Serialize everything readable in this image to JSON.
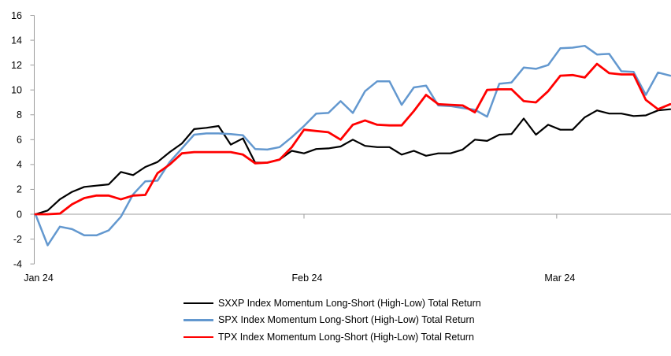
{
  "chart_data": {
    "type": "line",
    "title": "",
    "x_axis": {
      "tick_labels": [
        "Jan 24",
        "Feb 24",
        "Mar 24"
      ],
      "tick_positions_days": [
        0,
        22,
        42.7
      ],
      "domain_days": [
        0,
        52
      ]
    },
    "y_axis": {
      "tick_values": [
        16,
        14,
        12,
        10,
        8,
        6,
        4,
        2,
        0,
        -2,
        -4
      ],
      "min": -4,
      "max": 16
    },
    "grid": "zero-baseline-only",
    "legend_position": "bottom-center",
    "axis_color": "#9C9C9C",
    "text_color": "#000000",
    "series": [
      {
        "name": "SXXP Index Momentum Long-Short (High-Low) Total Return",
        "short": "sxxp",
        "color": "#000000",
        "stroke_width": 2.2,
        "values": [
          0,
          0.3,
          1.2,
          1.8,
          2.2,
          2.3,
          2.4,
          3.4,
          3.15,
          3.8,
          4.2,
          5.0,
          5.7,
          6.85,
          6.95,
          7.1,
          5.6,
          6.1,
          4.15,
          4.15,
          4.4,
          5.1,
          4.9,
          5.25,
          5.3,
          5.45,
          6.0,
          5.5,
          5.4,
          5.4,
          4.8,
          5.1,
          4.7,
          4.9,
          4.9,
          5.2,
          6.0,
          5.9,
          6.4,
          6.45,
          7.7,
          6.4,
          7.2,
          6.8,
          6.8,
          7.8,
          8.35,
          8.1,
          8.1,
          7.9,
          7.95,
          8.35,
          8.45
        ]
      },
      {
        "name": "SPX Index Momentum Long-Short (High-Low) Total Return",
        "short": "spx",
        "color": "#6398CF",
        "stroke_width": 2.5,
        "values": [
          0,
          -2.5,
          -1.0,
          -1.2,
          -1.7,
          -1.7,
          -1.3,
          -0.2,
          1.6,
          2.65,
          2.7,
          4.2,
          5.3,
          6.4,
          6.5,
          6.5,
          6.45,
          6.35,
          5.25,
          5.2,
          5.4,
          6.2,
          7.1,
          8.1,
          8.15,
          9.1,
          8.15,
          9.9,
          10.7,
          10.7,
          8.8,
          10.2,
          10.35,
          8.75,
          8.7,
          8.55,
          8.4,
          7.85,
          10.5,
          10.6,
          11.8,
          11.7,
          12.0,
          13.35,
          13.4,
          13.55,
          12.85,
          12.9,
          11.5,
          11.45,
          9.6,
          11.4,
          11.15
        ]
      },
      {
        "name": "TPX Index Momentum Long-Short (High-Low) Total Return",
        "short": "tpx",
        "color": "#FF0000",
        "stroke_width": 2.8,
        "values": [
          0,
          0,
          0.05,
          0.8,
          1.3,
          1.5,
          1.5,
          1.2,
          1.5,
          1.55,
          3.3,
          4.0,
          4.9,
          5.0,
          5.0,
          5.0,
          5.0,
          4.8,
          4.1,
          4.15,
          4.4,
          5.4,
          6.8,
          6.7,
          6.6,
          6.0,
          7.2,
          7.55,
          7.2,
          7.15,
          7.15,
          8.3,
          9.6,
          8.85,
          8.8,
          8.75,
          8.2,
          10.0,
          10.05,
          10.05,
          9.1,
          9.0,
          9.9,
          11.15,
          11.2,
          11.0,
          12.1,
          11.35,
          11.25,
          11.25,
          9.2,
          8.45,
          8.85
        ]
      }
    ]
  }
}
